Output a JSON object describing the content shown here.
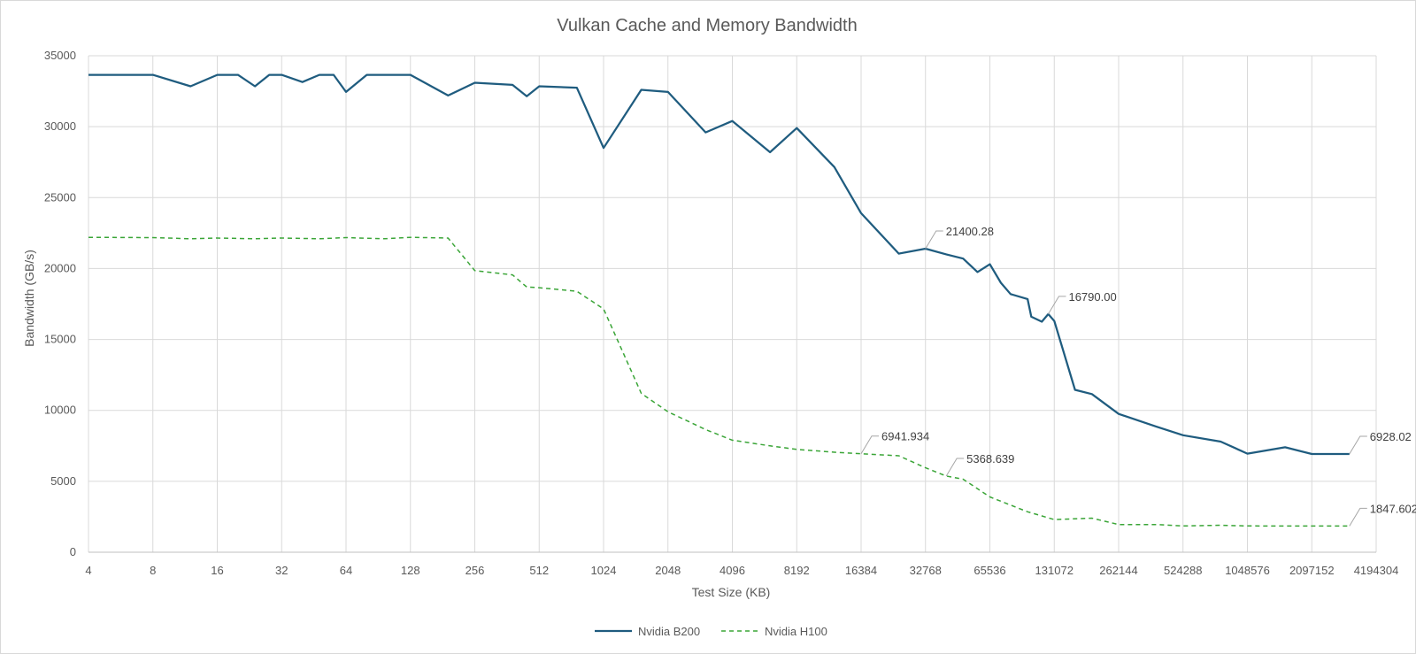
{
  "chart_data": {
    "type": "line",
    "title": "Vulkan Cache and Memory Bandwidth",
    "xlabel": "Test Size (KB)",
    "ylabel": "Bandwidth (GB/s)",
    "x_scale": "log2",
    "xlim": [
      4,
      4194304
    ],
    "ylim": [
      0,
      35000
    ],
    "y_ticks": [
      "0",
      "5000",
      "10000",
      "15000",
      "20000",
      "25000",
      "30000",
      "35000"
    ],
    "x_ticks": [
      "4",
      "8",
      "16",
      "32",
      "64",
      "128",
      "256",
      "512",
      "1024",
      "2048",
      "4096",
      "8192",
      "16384",
      "32768",
      "65536",
      "131072",
      "262144",
      "524288",
      "1048576",
      "2097152",
      "4194304"
    ],
    "grid": true,
    "legend_position": "bottom",
    "series": [
      {
        "name": "Nvidia B200",
        "color": "#1f5c7f",
        "style": "solid",
        "points": [
          [
            4,
            33650
          ],
          [
            8,
            33650
          ],
          [
            12,
            32850
          ],
          [
            16,
            33650
          ],
          [
            20,
            33650
          ],
          [
            24,
            32850
          ],
          [
            28,
            33650
          ],
          [
            32,
            33650
          ],
          [
            40,
            33150
          ],
          [
            48,
            33650
          ],
          [
            56,
            33650
          ],
          [
            64,
            32450
          ],
          [
            80,
            33650
          ],
          [
            96,
            33650
          ],
          [
            128,
            33650
          ],
          [
            192,
            32200
          ],
          [
            256,
            33100
          ],
          [
            384,
            32950
          ],
          [
            448,
            32150
          ],
          [
            512,
            32850
          ],
          [
            768,
            32750
          ],
          [
            1024,
            28500
          ],
          [
            1536,
            32600
          ],
          [
            2048,
            32450
          ],
          [
            3072,
            29600
          ],
          [
            4096,
            30400
          ],
          [
            6144,
            28200
          ],
          [
            8192,
            29900
          ],
          [
            12288,
            27150
          ],
          [
            16384,
            23900
          ],
          [
            24576,
            21050
          ],
          [
            32768,
            21400.28
          ],
          [
            40960,
            21000
          ],
          [
            49152,
            20700
          ],
          [
            57344,
            19750
          ],
          [
            65536,
            20300
          ],
          [
            73728,
            19000
          ],
          [
            81920,
            18200
          ],
          [
            98304,
            17850
          ],
          [
            102400,
            16600
          ],
          [
            114688,
            16250
          ],
          [
            122880,
            16790.0
          ],
          [
            131072,
            16300
          ],
          [
            163840,
            11450
          ],
          [
            196608,
            11150
          ],
          [
            262144,
            9750
          ],
          [
            393216,
            8850
          ],
          [
            524288,
            8250
          ],
          [
            786432,
            7800
          ],
          [
            1048576,
            6950
          ],
          [
            1572864,
            7400
          ],
          [
            2097152,
            6928
          ],
          [
            3145728,
            6928.02
          ]
        ],
        "annotations": [
          {
            "x": 32768,
            "y": 21400.28,
            "label": "21400.28"
          },
          {
            "x": 122880,
            "y": 16790.0,
            "label": "16790.00"
          },
          {
            "x": 3145728,
            "y": 6928.02,
            "label": "6928.02"
          }
        ]
      },
      {
        "name": "Nvidia H100",
        "color": "#3aa537",
        "style": "dashed",
        "points": [
          [
            4,
            22200
          ],
          [
            8,
            22180
          ],
          [
            12,
            22100
          ],
          [
            16,
            22150
          ],
          [
            24,
            22100
          ],
          [
            32,
            22150
          ],
          [
            48,
            22100
          ],
          [
            64,
            22180
          ],
          [
            96,
            22100
          ],
          [
            128,
            22200
          ],
          [
            192,
            22150
          ],
          [
            256,
            19850
          ],
          [
            384,
            19550
          ],
          [
            448,
            18700
          ],
          [
            512,
            18650
          ],
          [
            768,
            18400
          ],
          [
            1024,
            17150
          ],
          [
            1536,
            11200
          ],
          [
            2048,
            9900
          ],
          [
            3072,
            8650
          ],
          [
            4096,
            7900
          ],
          [
            6144,
            7500
          ],
          [
            8192,
            7250
          ],
          [
            12288,
            7050
          ],
          [
            16384,
            6941.934
          ],
          [
            24576,
            6800
          ],
          [
            32768,
            5950
          ],
          [
            40960,
            5368.639
          ],
          [
            49152,
            5150
          ],
          [
            65536,
            3900
          ],
          [
            98304,
            2850
          ],
          [
            131072,
            2300
          ],
          [
            196608,
            2400
          ],
          [
            262144,
            1950
          ],
          [
            393216,
            1950
          ],
          [
            524288,
            1850
          ],
          [
            786432,
            1900
          ],
          [
            1048576,
            1850
          ],
          [
            2097152,
            1847
          ],
          [
            3145728,
            1847.602
          ]
        ],
        "annotations": [
          {
            "x": 16384,
            "y": 6941.934,
            "label": "6941.934"
          },
          {
            "x": 40960,
            "y": 5368.639,
            "label": "5368.639"
          },
          {
            "x": 3145728,
            "y": 1847.602,
            "label": "1847.602"
          }
        ]
      }
    ]
  }
}
